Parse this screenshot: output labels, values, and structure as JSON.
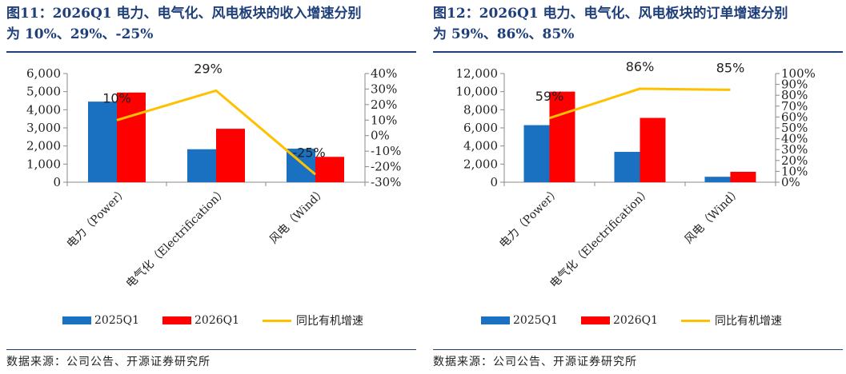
{
  "source_left": "数据来源：公司公告、开源证券研究所",
  "source_right": "数据来源：公司公告、开源证券研究所",
  "colors": {
    "bar_2025": "#1a70c1",
    "bar_2026": "#ff0000",
    "line": "#ffc000",
    "title": "#1f3f7a"
  },
  "chart_data": [
    {
      "type": "bar",
      "title_line1": "图11：2026Q1 电力、电气化、风电板块的收入增速分别",
      "title_line2": "为 10%、29%、-25%",
      "categories": [
        "电力（Power）",
        "电气化（Electrification）",
        "风电（Wind）"
      ],
      "series": [
        {
          "name": "2025Q1",
          "axis": "left",
          "values": [
            4450,
            1820,
            1850
          ]
        },
        {
          "name": "2026Q1",
          "axis": "left",
          "values": [
            4950,
            2950,
            1400
          ]
        },
        {
          "name": "同比有机增速",
          "axis": "right",
          "kind": "line",
          "values": [
            10,
            29,
            -25
          ]
        }
      ],
      "line_labels": [
        "10%",
        "29%",
        "-25%"
      ],
      "ylim_left": [
        0,
        6000
      ],
      "yticks_left": [
        "0",
        "1,000",
        "2,000",
        "3,000",
        "4,000",
        "5,000",
        "6,000"
      ],
      "ylim_right": [
        -30,
        40
      ],
      "yticks_right": [
        "-30%",
        "-20%",
        "-10%",
        "0%",
        "10%",
        "20%",
        "30%",
        "40%"
      ],
      "grid": false,
      "legend_position": "bottom"
    },
    {
      "type": "bar",
      "title_line1": "图12：2026Q1 电力、电气化、风电板块的订单增速分别",
      "title_line2": "为 59%、86%、85%",
      "categories": [
        "电力（Power）",
        "电气化（Electrification）",
        "风电（Wind）"
      ],
      "series": [
        {
          "name": "2025Q1",
          "axis": "left",
          "values": [
            6300,
            3350,
            600
          ]
        },
        {
          "name": "2026Q1",
          "axis": "left",
          "values": [
            10000,
            7100,
            1150
          ]
        },
        {
          "name": "同比有机增速",
          "axis": "right",
          "kind": "line",
          "values": [
            59,
            86,
            85
          ]
        }
      ],
      "line_labels": [
        "59%",
        "86%",
        "85%"
      ],
      "ylim_left": [
        0,
        12000
      ],
      "yticks_left": [
        "0",
        "2,000",
        "4,000",
        "6,000",
        "8,000",
        "10,000",
        "12,000"
      ],
      "ylim_right": [
        0,
        100
      ],
      "yticks_right": [
        "0%",
        "10%",
        "20%",
        "30%",
        "40%",
        "50%",
        "60%",
        "70%",
        "80%",
        "90%",
        "100%"
      ],
      "grid": false,
      "legend_position": "bottom"
    }
  ]
}
